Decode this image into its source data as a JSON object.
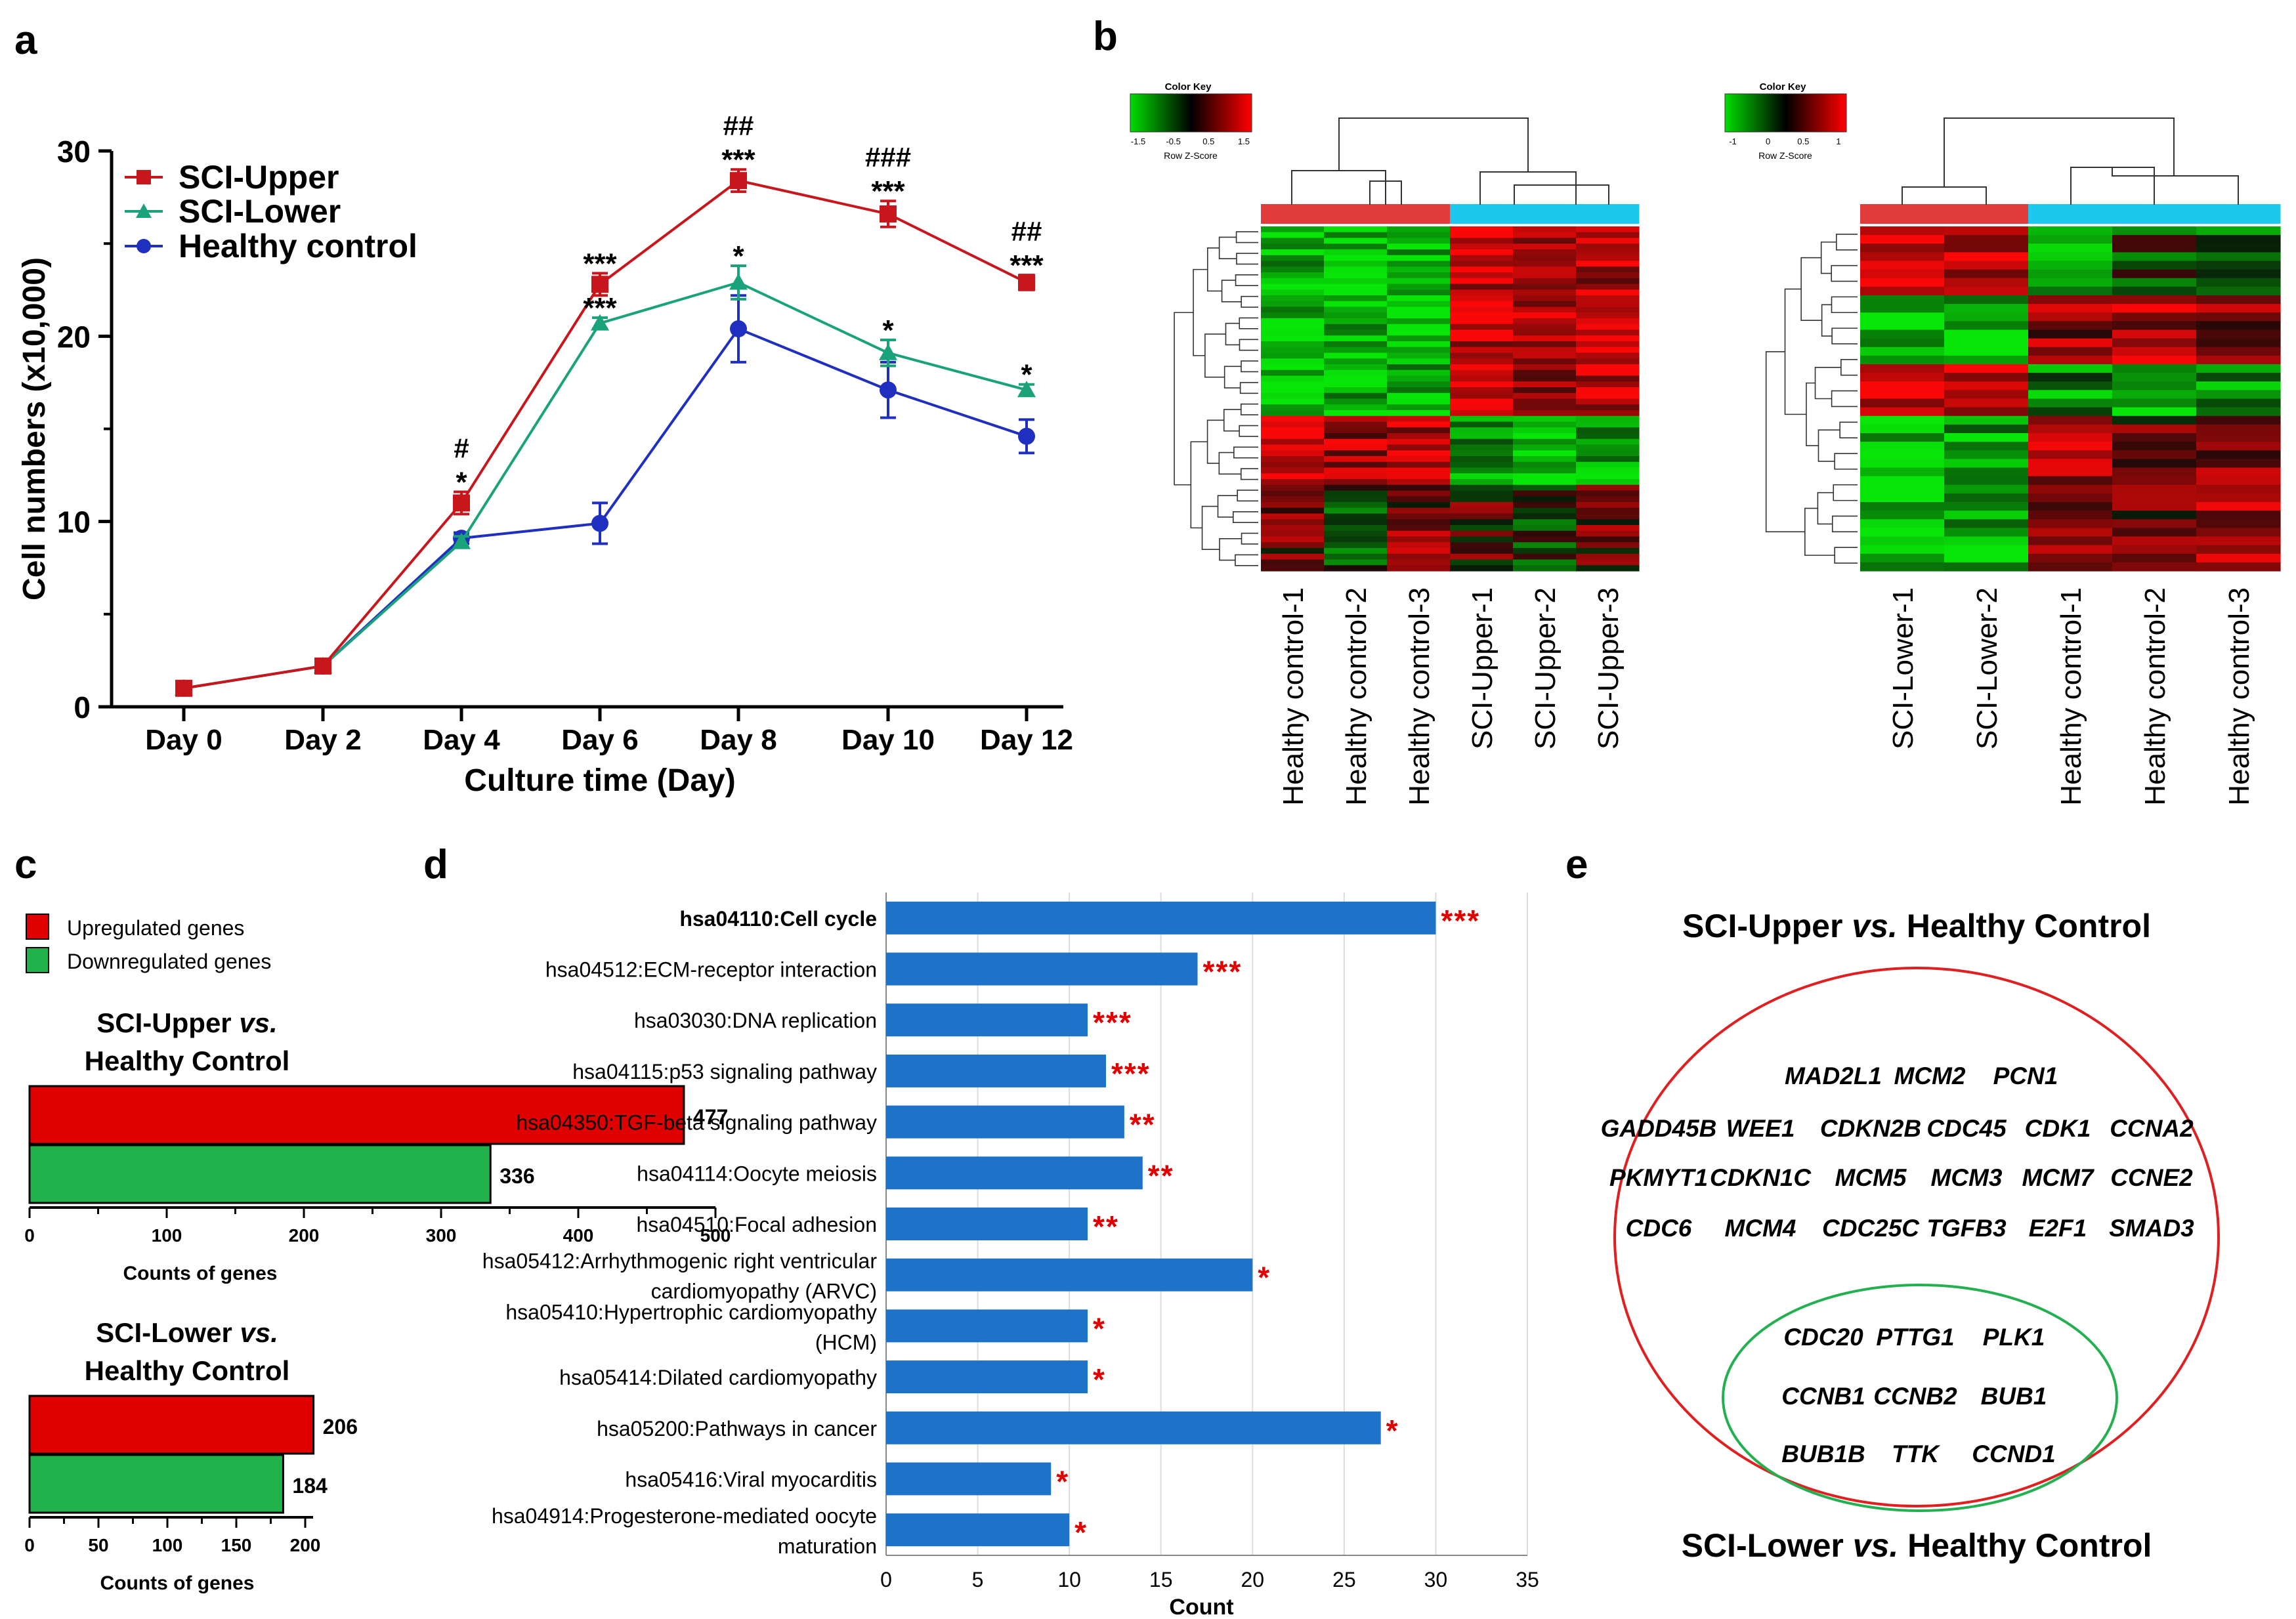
{
  "panel_labels": [
    "a",
    "b",
    "c",
    "d",
    "e"
  ],
  "colors": {
    "upper": "#C8161D",
    "lower": "#1AA37A",
    "healthy": "#1F2FC0",
    "up_bar": "#E00000",
    "down_bar": "#21B24B",
    "kegg_bar": "#1E73C8",
    "star": "#E00000",
    "bar_red": "#E23B3B",
    "bar_cyan": "#1CC8EE"
  },
  "chart_data": [
    {
      "id": "a",
      "type": "line",
      "title": "",
      "xlabel": "Culture time (Day)",
      "ylabel": "Cell numbers (x10,000)",
      "categories": [
        "Day 0",
        "Day 2",
        "Day 4",
        "Day 6",
        "Day 8",
        "Day 10",
        "Day 12"
      ],
      "ylim": [
        0,
        30
      ],
      "yticks": [
        "0",
        "10",
        "20",
        "30"
      ],
      "legend_position": "top-left",
      "series": [
        {
          "name": "SCI-Upper",
          "marker": "square",
          "values": [
            1.0,
            2.2,
            11.0,
            22.8,
            28.4,
            26.6,
            22.9
          ],
          "errors": [
            0.2,
            0.2,
            0.6,
            0.6,
            0.6,
            0.7,
            0.4
          ]
        },
        {
          "name": "SCI-Lower",
          "marker": "triangle",
          "values": [
            1.0,
            2.2,
            8.9,
            20.7,
            22.9,
            19.1,
            17.1
          ],
          "errors": [
            0.2,
            0.2,
            0.3,
            0.3,
            0.9,
            0.7,
            0.3
          ]
        },
        {
          "name": "Healthy control",
          "marker": "circle",
          "values": [
            1.0,
            2.2,
            9.1,
            9.9,
            20.4,
            17.1,
            14.6
          ],
          "errors": [
            0.2,
            0.2,
            0.3,
            1.1,
            1.8,
            1.5,
            0.9
          ]
        }
      ],
      "annotations": [
        {
          "day": 2,
          "stack": [
            "#",
            "*"
          ]
        },
        {
          "day": 3,
          "stack": [
            "***"
          ]
        },
        {
          "day": 3,
          "stack": [
            "***"
          ],
          "series": "SCI-Lower"
        },
        {
          "day": 4,
          "stack": [
            "##",
            "***"
          ]
        },
        {
          "day": 4,
          "stack": [
            "*"
          ],
          "series": "SCI-Lower"
        },
        {
          "day": 5,
          "stack": [
            "###",
            "***"
          ]
        },
        {
          "day": 5,
          "stack": [
            "*"
          ],
          "series": "SCI-Lower"
        },
        {
          "day": 6,
          "stack": [
            "##",
            "***"
          ]
        },
        {
          "day": 6,
          "stack": [
            "*"
          ],
          "series": "SCI-Lower"
        }
      ]
    },
    {
      "id": "b",
      "type": "heatmap",
      "heatmaps": [
        {
          "color_key_title": "Color Key",
          "color_key_ticks": [
            "-1.5",
            "-0.5",
            "0.5",
            "1.5"
          ],
          "color_key_label": "Row Z-Score",
          "columns": [
            "Healthy control-1",
            "Healthy control-2",
            "Healthy control-3",
            "SCI-Upper-1",
            "SCI-Upper-2",
            "SCI-Upper-3"
          ],
          "groups": [
            "red",
            "red",
            "red",
            "cyan",
            "cyan",
            "cyan"
          ]
        },
        {
          "color_key_title": "Color Key",
          "color_key_ticks": [
            "-1",
            "0",
            "0.5",
            "1"
          ],
          "color_key_label": "Row Z-Score",
          "columns": [
            "SCI-Lower-1",
            "SCI-Lower-2",
            "Healthy control-1",
            "Healthy control-2",
            "Healthy control-3"
          ],
          "groups": [
            "red",
            "red",
            "cyan",
            "cyan",
            "cyan"
          ]
        }
      ]
    },
    {
      "id": "c",
      "type": "bar",
      "legend": [
        "Upregulated genes",
        "Downregulated genes"
      ],
      "subcharts": [
        {
          "title_line1": "SCI-Upper ",
          "title_vs": "vs.",
          "title_line2": "Healthy Control",
          "values": [
            477,
            336
          ],
          "xlim": [
            0,
            500
          ],
          "xticks": [
            "0",
            "100",
            "200",
            "300",
            "400",
            "500"
          ],
          "xlabel": "Counts of genes"
        },
        {
          "title_line1": "SCI-Lower ",
          "title_vs": "vs.",
          "title_line2": "Healthy Control",
          "values": [
            206,
            184
          ],
          "xlim": [
            0,
            200
          ],
          "xticks": [
            "0",
            "50",
            "100",
            "150",
            "200"
          ],
          "xlabel": "Counts of genes"
        }
      ]
    },
    {
      "id": "d",
      "type": "bar",
      "orientation": "horizontal",
      "xlabel": "Count",
      "xlim": [
        0,
        35
      ],
      "xticks": [
        "0",
        "5",
        "10",
        "15",
        "20",
        "25",
        "30",
        "35"
      ],
      "categories": [
        [
          "hsa04110:Cell cycle"
        ],
        [
          "hsa04512:ECM-receptor interaction"
        ],
        [
          "hsa03030:DNA replication"
        ],
        [
          "hsa04115:p53 signaling pathway"
        ],
        [
          "hsa04350:TGF-beta signaling pathway"
        ],
        [
          "hsa04114:Oocyte meiosis"
        ],
        [
          "hsa04510:Focal adhesion"
        ],
        [
          "hsa05412:Arrhythmogenic right ventricular",
          "cardiomyopathy (ARVC)"
        ],
        [
          "hsa05410:Hypertrophic cardiomyopathy",
          "(HCM)"
        ],
        [
          "hsa05414:Dilated cardiomyopathy"
        ],
        [
          "hsa05200:Pathways in cancer"
        ],
        [
          "hsa05416:Viral myocarditis"
        ],
        [
          "hsa04914:Progesterone-mediated oocyte",
          "maturation"
        ]
      ],
      "values": [
        30,
        17,
        11,
        12,
        13,
        14,
        11,
        20,
        11,
        11,
        27,
        9,
        10
      ],
      "stars": [
        "***",
        "***",
        "***",
        "***",
        "**",
        "**",
        "**",
        "*",
        "*",
        "*",
        "*",
        "*",
        "*"
      ]
    }
  ],
  "panel_e": {
    "outer_title_pre": "SCI-Upper ",
    "outer_title_vs": "vs.",
    "outer_title_post": " Healthy Control",
    "inner_title_pre": "SCI-Lower ",
    "inner_title_vs": "vs.",
    "inner_title_post": " Healthy Control",
    "outer_rows": [
      [
        "MAD2L1",
        "MCM2",
        "PCN1"
      ],
      [
        "GADD45B",
        "WEE1",
        "CDKN2B",
        "CDC45",
        "CDK1",
        "CCNA2"
      ],
      [
        "PKMYT1",
        "CDKN1C",
        "MCM5",
        "MCM3",
        "MCM7",
        "CCNE2"
      ],
      [
        "CDC6",
        "MCM4",
        "CDC25C",
        "TGFB3",
        "E2F1",
        "SMAD3"
      ]
    ],
    "inner_rows": [
      [
        "CDC20",
        "PTTG1",
        "PLK1"
      ],
      [
        "CCNB1",
        "CCNB2",
        "BUB1"
      ],
      [
        "BUB1B",
        "TTK",
        "CCND1"
      ]
    ]
  }
}
